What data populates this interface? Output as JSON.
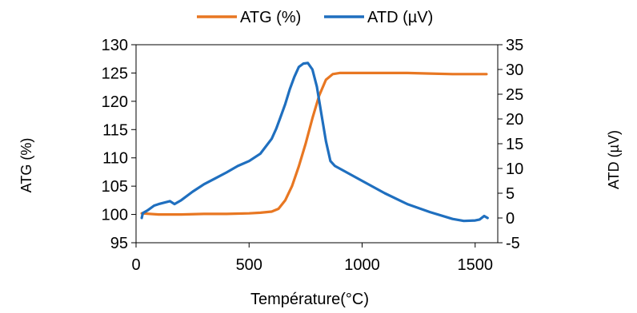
{
  "chart_data": {
    "type": "line",
    "title": "",
    "xlabel": "Température(°C)",
    "ylabel_left": "ATG (%)",
    "ylabel_right": "ATD (µV)",
    "xlim": [
      0,
      1600
    ],
    "ylim_left": [
      95,
      130
    ],
    "ylim_right": [
      -5,
      35
    ],
    "x_ticks": [
      "0",
      "500",
      "1000",
      "1500"
    ],
    "y_left_ticks": [
      "95",
      "100",
      "105",
      "110",
      "115",
      "120",
      "125",
      "130"
    ],
    "y_right_ticks": [
      "-5",
      "0",
      "5",
      "10",
      "15",
      "20",
      "25",
      "30",
      "35"
    ],
    "legend_position": "top",
    "grid": false,
    "series": [
      {
        "name": "ATG (%)",
        "axis": "left",
        "color": "#E87722",
        "x": [
          25,
          100,
          200,
          300,
          400,
          500,
          550,
          600,
          630,
          660,
          690,
          720,
          750,
          780,
          810,
          840,
          870,
          900,
          1000,
          1100,
          1200,
          1300,
          1400,
          1450,
          1500,
          1550
        ],
        "y": [
          100.2,
          100.0,
          100.0,
          100.1,
          100.1,
          100.2,
          100.3,
          100.5,
          101.0,
          102.5,
          105.0,
          108.5,
          112.5,
          117.0,
          121.0,
          123.8,
          124.8,
          125.0,
          125.0,
          125.0,
          125.0,
          124.9,
          124.8,
          124.8,
          124.8,
          124.8
        ]
      },
      {
        "name": "ATD (µV)",
        "axis": "right",
        "color": "#1F6FBF",
        "x": [
          25,
          30,
          50,
          80,
          100,
          150,
          170,
          200,
          250,
          300,
          350,
          400,
          450,
          500,
          550,
          600,
          620,
          640,
          660,
          680,
          700,
          720,
          740,
          760,
          780,
          800,
          820,
          840,
          860,
          880,
          900,
          1000,
          1100,
          1200,
          1300,
          1400,
          1450,
          1500,
          1520,
          1540,
          1555
        ],
        "y": [
          0,
          1.0,
          1.5,
          2.5,
          2.8,
          3.4,
          2.8,
          3.6,
          5.3,
          6.8,
          8.0,
          9.2,
          10.5,
          11.5,
          13.0,
          16.0,
          18.0,
          20.5,
          23.0,
          26.0,
          28.5,
          30.5,
          31.2,
          31.3,
          30.0,
          26.5,
          21.0,
          15.5,
          11.5,
          10.5,
          10.0,
          7.5,
          5.0,
          2.8,
          1.2,
          -0.2,
          -0.6,
          -0.5,
          -0.3,
          0.4,
          0.0
        ]
      }
    ]
  }
}
